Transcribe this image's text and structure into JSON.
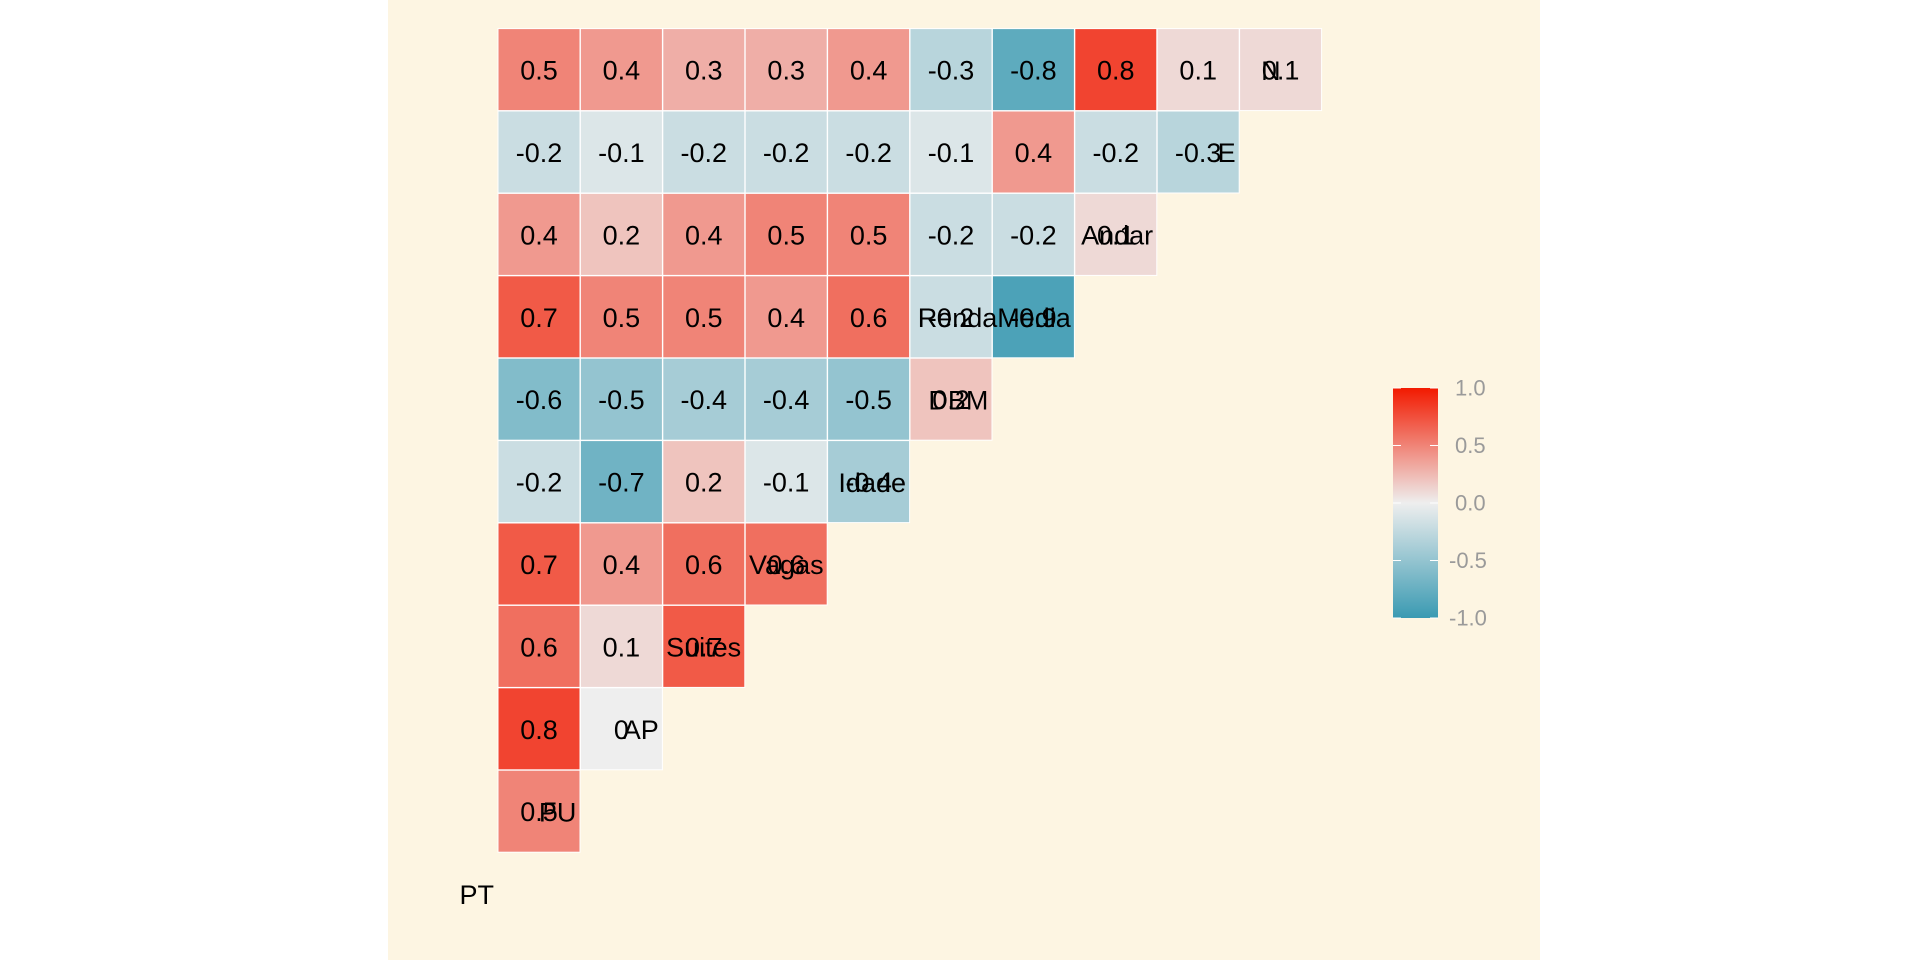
{
  "chart_data": {
    "type": "heatmap",
    "variables": [
      "PT",
      "PU",
      "AP",
      "Suites",
      "Vagas",
      "Idade",
      "DBM",
      "RendaMedia",
      "Andar",
      "E",
      "N"
    ],
    "cells": [
      {
        "row": "PU",
        "col": "PT",
        "value": 0.5,
        "label": "0.5"
      },
      {
        "row": "AP",
        "col": "PT",
        "value": 0.8,
        "label": "0.8"
      },
      {
        "row": "AP",
        "col": "PU",
        "value": 0.0,
        "label": "0"
      },
      {
        "row": "Suites",
        "col": "PT",
        "value": 0.6,
        "label": "0.6"
      },
      {
        "row": "Suites",
        "col": "PU",
        "value": 0.1,
        "label": "0.1"
      },
      {
        "row": "Suites",
        "col": "AP",
        "value": 0.7,
        "label": "0.7"
      },
      {
        "row": "Vagas",
        "col": "PT",
        "value": 0.7,
        "label": "0.7"
      },
      {
        "row": "Vagas",
        "col": "PU",
        "value": 0.4,
        "label": "0.4"
      },
      {
        "row": "Vagas",
        "col": "AP",
        "value": 0.6,
        "label": "0.6"
      },
      {
        "row": "Vagas",
        "col": "Suites",
        "value": 0.6,
        "label": "0.6"
      },
      {
        "row": "Idade",
        "col": "PT",
        "value": -0.2,
        "label": "-0.2"
      },
      {
        "row": "Idade",
        "col": "PU",
        "value": -0.7,
        "label": "-0.7"
      },
      {
        "row": "Idade",
        "col": "AP",
        "value": 0.2,
        "label": "0.2"
      },
      {
        "row": "Idade",
        "col": "Suites",
        "value": -0.1,
        "label": "-0.1"
      },
      {
        "row": "Idade",
        "col": "Vagas",
        "value": -0.4,
        "label": "-0.4"
      },
      {
        "row": "DBM",
        "col": "PT",
        "value": -0.6,
        "label": "-0.6"
      },
      {
        "row": "DBM",
        "col": "PU",
        "value": -0.5,
        "label": "-0.5"
      },
      {
        "row": "DBM",
        "col": "AP",
        "value": -0.4,
        "label": "-0.4"
      },
      {
        "row": "DBM",
        "col": "Suites",
        "value": -0.4,
        "label": "-0.4"
      },
      {
        "row": "DBM",
        "col": "Vagas",
        "value": -0.5,
        "label": "-0.5"
      },
      {
        "row": "DBM",
        "col": "Idade",
        "value": 0.2,
        "label": "0.2"
      },
      {
        "row": "RendaMedia",
        "col": "PT",
        "value": 0.7,
        "label": "0.7"
      },
      {
        "row": "RendaMedia",
        "col": "PU",
        "value": 0.5,
        "label": "0.5"
      },
      {
        "row": "RendaMedia",
        "col": "AP",
        "value": 0.5,
        "label": "0.5"
      },
      {
        "row": "RendaMedia",
        "col": "Suites",
        "value": 0.4,
        "label": "0.4"
      },
      {
        "row": "RendaMedia",
        "col": "Vagas",
        "value": 0.6,
        "label": "0.6"
      },
      {
        "row": "RendaMedia",
        "col": "Idade",
        "value": -0.2,
        "label": "-0.2"
      },
      {
        "row": "RendaMedia",
        "col": "DBM",
        "value": -0.9,
        "label": "-0.9"
      },
      {
        "row": "Andar",
        "col": "PT",
        "value": 0.4,
        "label": "0.4"
      },
      {
        "row": "Andar",
        "col": "PU",
        "value": 0.2,
        "label": "0.2"
      },
      {
        "row": "Andar",
        "col": "AP",
        "value": 0.4,
        "label": "0.4"
      },
      {
        "row": "Andar",
        "col": "Suites",
        "value": 0.5,
        "label": "0.5"
      },
      {
        "row": "Andar",
        "col": "Vagas",
        "value": 0.5,
        "label": "0.5"
      },
      {
        "row": "Andar",
        "col": "Idade",
        "value": -0.2,
        "label": "-0.2"
      },
      {
        "row": "Andar",
        "col": "DBM",
        "value": -0.2,
        "label": "-0.2"
      },
      {
        "row": "Andar",
        "col": "RendaMedia",
        "value": 0.1,
        "label": "0.1"
      },
      {
        "row": "E",
        "col": "PT",
        "value": -0.2,
        "label": "-0.2"
      },
      {
        "row": "E",
        "col": "PU",
        "value": -0.1,
        "label": "-0.1"
      },
      {
        "row": "E",
        "col": "AP",
        "value": -0.2,
        "label": "-0.2"
      },
      {
        "row": "E",
        "col": "Suites",
        "value": -0.2,
        "label": "-0.2"
      },
      {
        "row": "E",
        "col": "Vagas",
        "value": -0.2,
        "label": "-0.2"
      },
      {
        "row": "E",
        "col": "Idade",
        "value": -0.1,
        "label": "-0.1"
      },
      {
        "row": "E",
        "col": "DBM",
        "value": 0.4,
        "label": "0.4"
      },
      {
        "row": "E",
        "col": "RendaMedia",
        "value": -0.2,
        "label": "-0.2"
      },
      {
        "row": "E",
        "col": "Andar",
        "value": -0.3,
        "label": "-0.3"
      },
      {
        "row": "N",
        "col": "PT",
        "value": 0.5,
        "label": "0.5"
      },
      {
        "row": "N",
        "col": "PU",
        "value": 0.4,
        "label": "0.4"
      },
      {
        "row": "N",
        "col": "AP",
        "value": 0.3,
        "label": "0.3"
      },
      {
        "row": "N",
        "col": "Suites",
        "value": 0.3,
        "label": "0.3"
      },
      {
        "row": "N",
        "col": "Vagas",
        "value": 0.4,
        "label": "0.4"
      },
      {
        "row": "N",
        "col": "Idade",
        "value": -0.3,
        "label": "-0.3"
      },
      {
        "row": "N",
        "col": "DBM",
        "value": -0.8,
        "label": "-0.8"
      },
      {
        "row": "N",
        "col": "RendaMedia",
        "value": 0.8,
        "label": "0.8"
      },
      {
        "row": "N",
        "col": "Andar",
        "value": 0.1,
        "label": "0.1"
      },
      {
        "row": "N",
        "col": "E",
        "value": 0.1,
        "label": "0.1"
      }
    ],
    "color_scale": {
      "min": -1.0,
      "max": 1.0,
      "low_color": "#3a9ab2",
      "mid_color": "#eeeeee",
      "high_color": "#f21a00"
    },
    "legend": {
      "position": "right",
      "ticks": [
        {
          "value": 1.0,
          "label": "1.0"
        },
        {
          "value": 0.5,
          "label": "0.5"
        },
        {
          "value": 0.0,
          "label": "0.0"
        },
        {
          "value": -0.5,
          "label": "-0.5"
        },
        {
          "value": -1.0,
          "label": "-1.0"
        }
      ]
    },
    "title": "",
    "background_color": "#fdf5e2",
    "cell_border_color": "#ffffff"
  }
}
